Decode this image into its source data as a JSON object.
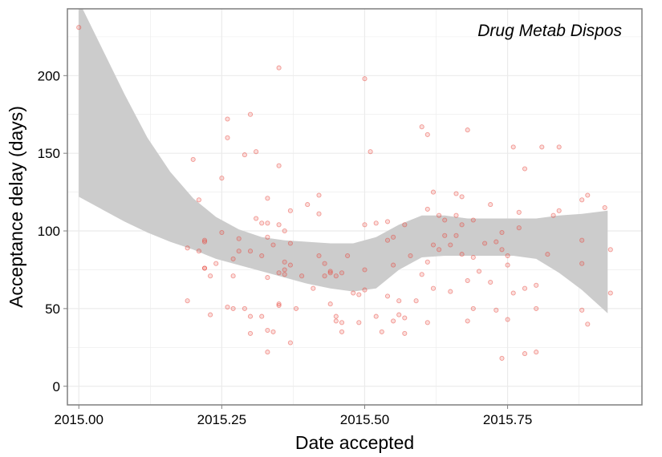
{
  "chart_data": {
    "type": "scatter",
    "annotation": "Drug Metab Dispos",
    "xlabel": "Date accepted",
    "ylabel": "Acceptance delay (days)",
    "xlim": [
      2014.98,
      2015.985
    ],
    "ylim": [
      -12,
      243
    ],
    "x_ticks": [
      2015.0,
      2015.25,
      2015.5,
      2015.75
    ],
    "x_tick_labels": [
      "2015.00",
      "2015.25",
      "2015.50",
      "2015.75"
    ],
    "y_ticks": [
      0,
      50,
      100,
      150,
      200
    ],
    "y_tick_labels": [
      "0",
      "50",
      "100",
      "150",
      "200"
    ],
    "grid": true,
    "colors": {
      "points": "#e8443a",
      "band": "#cccccc",
      "grid": "#ebebeb",
      "frame": "#7f7f7f"
    },
    "points": [
      [
        2015.0,
        231
      ],
      [
        2015.19,
        55
      ],
      [
        2015.19,
        89
      ],
      [
        2015.2,
        146
      ],
      [
        2015.21,
        87
      ],
      [
        2015.21,
        120
      ],
      [
        2015.22,
        94
      ],
      [
        2015.22,
        93
      ],
      [
        2015.22,
        76
      ],
      [
        2015.22,
        76
      ],
      [
        2015.23,
        71
      ],
      [
        2015.23,
        46
      ],
      [
        2015.24,
        79
      ],
      [
        2015.25,
        134
      ],
      [
        2015.25,
        99
      ],
      [
        2015.26,
        172
      ],
      [
        2015.26,
        160
      ],
      [
        2015.26,
        51
      ],
      [
        2015.27,
        71
      ],
      [
        2015.27,
        50
      ],
      [
        2015.27,
        82
      ],
      [
        2015.28,
        95
      ],
      [
        2015.28,
        87
      ],
      [
        2015.29,
        149
      ],
      [
        2015.29,
        50
      ],
      [
        2015.3,
        175
      ],
      [
        2015.3,
        87
      ],
      [
        2015.3,
        34
      ],
      [
        2015.3,
        45
      ],
      [
        2015.31,
        151
      ],
      [
        2015.31,
        108
      ],
      [
        2015.32,
        45
      ],
      [
        2015.32,
        84
      ],
      [
        2015.32,
        105
      ],
      [
        2015.33,
        105
      ],
      [
        2015.33,
        96
      ],
      [
        2015.33,
        70
      ],
      [
        2015.33,
        36
      ],
      [
        2015.33,
        22
      ],
      [
        2015.33,
        121
      ],
      [
        2015.34,
        35
      ],
      [
        2015.34,
        91
      ],
      [
        2015.35,
        52
      ],
      [
        2015.35,
        53
      ],
      [
        2015.35,
        104
      ],
      [
        2015.35,
        73
      ],
      [
        2015.35,
        142
      ],
      [
        2015.35,
        205
      ],
      [
        2015.36,
        80
      ],
      [
        2015.36,
        75
      ],
      [
        2015.36,
        72
      ],
      [
        2015.36,
        100
      ],
      [
        2015.37,
        92
      ],
      [
        2015.37,
        113
      ],
      [
        2015.37,
        78
      ],
      [
        2015.37,
        28
      ],
      [
        2015.38,
        50
      ],
      [
        2015.39,
        71
      ],
      [
        2015.4,
        117
      ],
      [
        2015.41,
        63
      ],
      [
        2015.42,
        123
      ],
      [
        2015.42,
        111
      ],
      [
        2015.42,
        84
      ],
      [
        2015.43,
        79
      ],
      [
        2015.43,
        71
      ],
      [
        2015.44,
        74
      ],
      [
        2015.44,
        73
      ],
      [
        2015.44,
        53
      ],
      [
        2015.45,
        71
      ],
      [
        2015.45,
        45
      ],
      [
        2015.45,
        42
      ],
      [
        2015.46,
        35
      ],
      [
        2015.46,
        41
      ],
      [
        2015.46,
        73
      ],
      [
        2015.47,
        84
      ],
      [
        2015.48,
        60
      ],
      [
        2015.49,
        41
      ],
      [
        2015.49,
        59
      ],
      [
        2015.5,
        198
      ],
      [
        2015.5,
        75
      ],
      [
        2015.5,
        62
      ],
      [
        2015.5,
        104
      ],
      [
        2015.51,
        151
      ],
      [
        2015.52,
        105
      ],
      [
        2015.52,
        45
      ],
      [
        2015.53,
        35
      ],
      [
        2015.54,
        94
      ],
      [
        2015.54,
        106
      ],
      [
        2015.54,
        58
      ],
      [
        2015.55,
        78
      ],
      [
        2015.55,
        42
      ],
      [
        2015.55,
        96
      ],
      [
        2015.56,
        46
      ],
      [
        2015.56,
        55
      ],
      [
        2015.57,
        44
      ],
      [
        2015.57,
        34
      ],
      [
        2015.57,
        104
      ],
      [
        2015.58,
        84
      ],
      [
        2015.59,
        55
      ],
      [
        2015.6,
        72
      ],
      [
        2015.6,
        167
      ],
      [
        2015.61,
        162
      ],
      [
        2015.61,
        114
      ],
      [
        2015.61,
        80
      ],
      [
        2015.61,
        41
      ],
      [
        2015.62,
        91
      ],
      [
        2015.62,
        125
      ],
      [
        2015.62,
        63
      ],
      [
        2015.63,
        110
      ],
      [
        2015.63,
        88
      ],
      [
        2015.64,
        97
      ],
      [
        2015.64,
        107
      ],
      [
        2015.65,
        61
      ],
      [
        2015.65,
        91
      ],
      [
        2015.66,
        124
      ],
      [
        2015.66,
        97
      ],
      [
        2015.66,
        110
      ],
      [
        2015.67,
        104
      ],
      [
        2015.67,
        85
      ],
      [
        2015.67,
        122
      ],
      [
        2015.68,
        68
      ],
      [
        2015.68,
        42
      ],
      [
        2015.68,
        165
      ],
      [
        2015.69,
        50
      ],
      [
        2015.69,
        107
      ],
      [
        2015.69,
        83
      ],
      [
        2015.7,
        74
      ],
      [
        2015.71,
        92
      ],
      [
        2015.72,
        67
      ],
      [
        2015.72,
        117
      ],
      [
        2015.73,
        93
      ],
      [
        2015.73,
        49
      ],
      [
        2015.74,
        99
      ],
      [
        2015.74,
        88
      ],
      [
        2015.74,
        18
      ],
      [
        2015.75,
        43
      ],
      [
        2015.75,
        78
      ],
      [
        2015.75,
        84
      ],
      [
        2015.76,
        154
      ],
      [
        2015.76,
        60
      ],
      [
        2015.77,
        102
      ],
      [
        2015.77,
        112
      ],
      [
        2015.78,
        140
      ],
      [
        2015.78,
        21
      ],
      [
        2015.78,
        63
      ],
      [
        2015.8,
        65
      ],
      [
        2015.8,
        22
      ],
      [
        2015.8,
        50
      ],
      [
        2015.81,
        154
      ],
      [
        2015.82,
        85
      ],
      [
        2015.83,
        110
      ],
      [
        2015.84,
        113
      ],
      [
        2015.84,
        154
      ],
      [
        2015.88,
        120
      ],
      [
        2015.88,
        94
      ],
      [
        2015.88,
        79
      ],
      [
        2015.88,
        49
      ],
      [
        2015.89,
        123
      ],
      [
        2015.89,
        40
      ],
      [
        2015.92,
        115
      ],
      [
        2015.93,
        88
      ],
      [
        2015.93,
        60
      ]
    ],
    "band_upper": [
      [
        2015.0,
        248
      ],
      [
        2015.04,
        218
      ],
      [
        2015.08,
        188
      ],
      [
        2015.12,
        160
      ],
      [
        2015.16,
        138
      ],
      [
        2015.2,
        121
      ],
      [
        2015.24,
        109
      ],
      [
        2015.28,
        101
      ],
      [
        2015.32,
        96
      ],
      [
        2015.36,
        94
      ],
      [
        2015.4,
        93
      ],
      [
        2015.44,
        92
      ],
      [
        2015.48,
        92
      ],
      [
        2015.52,
        96
      ],
      [
        2015.56,
        104
      ],
      [
        2015.6,
        110
      ],
      [
        2015.64,
        110
      ],
      [
        2015.68,
        108
      ],
      [
        2015.72,
        108
      ],
      [
        2015.76,
        108
      ],
      [
        2015.8,
        108
      ],
      [
        2015.84,
        110
      ],
      [
        2015.88,
        111
      ],
      [
        2015.925,
        113
      ]
    ],
    "band_lower": [
      [
        2015.0,
        122
      ],
      [
        2015.04,
        114
      ],
      [
        2015.08,
        106
      ],
      [
        2015.12,
        99
      ],
      [
        2015.16,
        93
      ],
      [
        2015.2,
        88
      ],
      [
        2015.24,
        82
      ],
      [
        2015.28,
        78
      ],
      [
        2015.32,
        74
      ],
      [
        2015.36,
        70
      ],
      [
        2015.4,
        66
      ],
      [
        2015.44,
        63
      ],
      [
        2015.48,
        61
      ],
      [
        2015.52,
        63
      ],
      [
        2015.56,
        75
      ],
      [
        2015.6,
        83
      ],
      [
        2015.64,
        84
      ],
      [
        2015.68,
        84
      ],
      [
        2015.72,
        84
      ],
      [
        2015.76,
        84
      ],
      [
        2015.8,
        82
      ],
      [
        2015.84,
        73
      ],
      [
        2015.88,
        62
      ],
      [
        2015.925,
        47
      ]
    ]
  }
}
